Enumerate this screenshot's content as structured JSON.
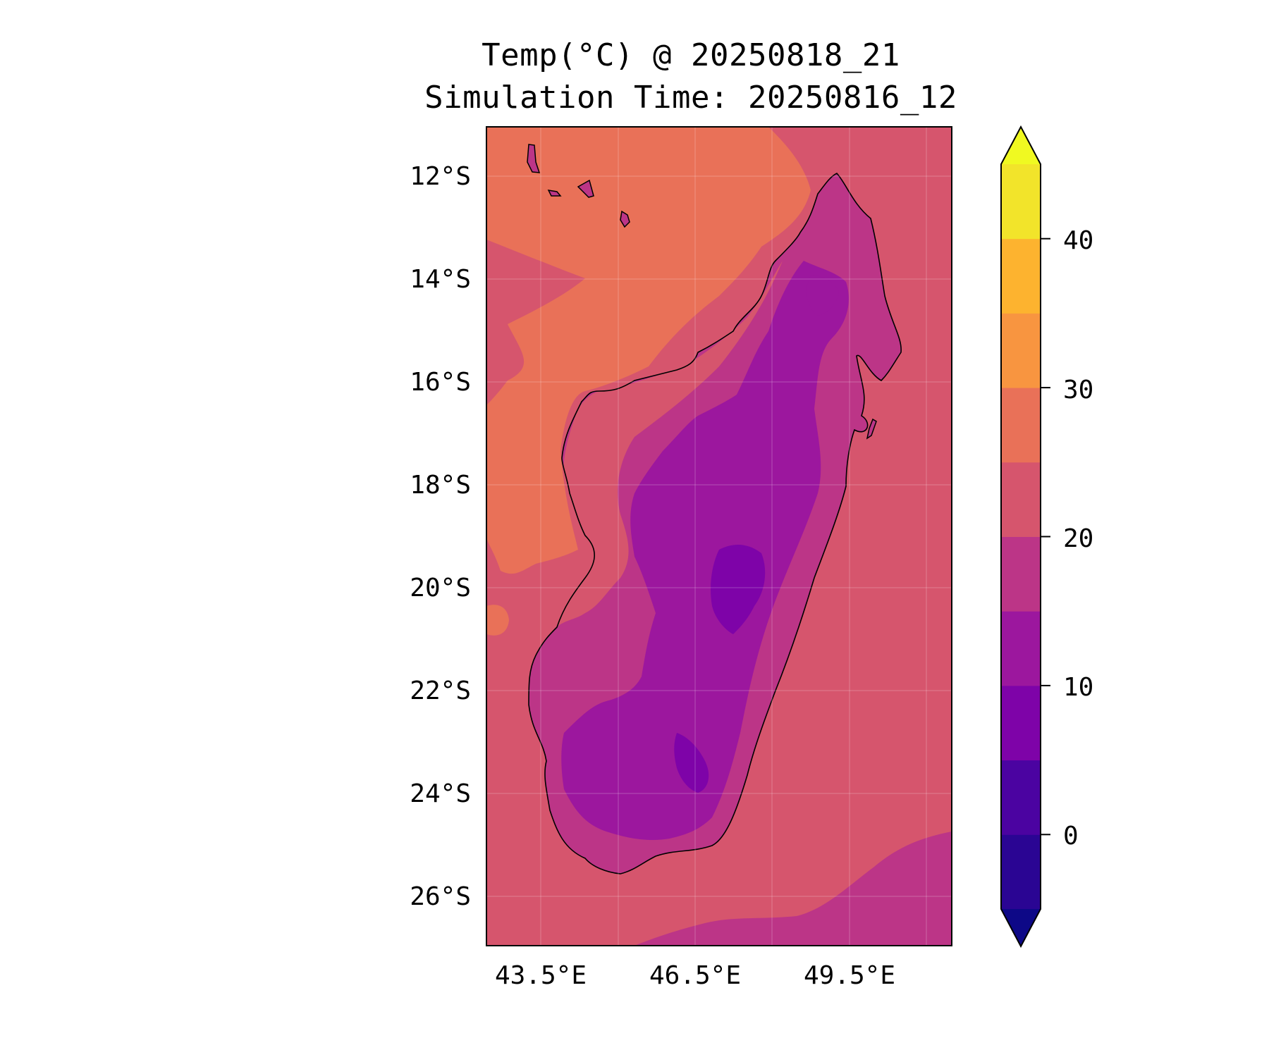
{
  "title_line1": "Temp(°C) @ 20250818_21",
  "title_line2": "Simulation Time: 20250816_12",
  "map": {
    "region": "Madagascar",
    "lat_ticks": [
      "12°S",
      "14°S",
      "16°S",
      "18°S",
      "20°S",
      "22°S",
      "24°S",
      "26°S"
    ],
    "lon_ticks": [
      "43.5°E",
      "46.5°E",
      "49.5°E"
    ],
    "gridlines": true
  },
  "colorbar": {
    "ticks": [
      "40",
      "30",
      "20",
      "10",
      "0"
    ],
    "extend": "both",
    "levels": [
      -5,
      0,
      5,
      10,
      15,
      20,
      25,
      30,
      35,
      40,
      45
    ],
    "colors": {
      "under": "#0d0887",
      "bin_-5_0": "#2a0593",
      "bin_0_5": "#4b03a1",
      "bin_5_10": "#7e03a8",
      "bin_10_15": "#9c179e",
      "bin_15_20": "#bc3587",
      "bin_20_25": "#d6556d",
      "bin_25_30": "#e97158",
      "bin_30_35": "#f89540",
      "bin_35_40": "#fdb32f",
      "bin_40_45": "#f2e42a",
      "over": "#f0f921"
    }
  }
}
